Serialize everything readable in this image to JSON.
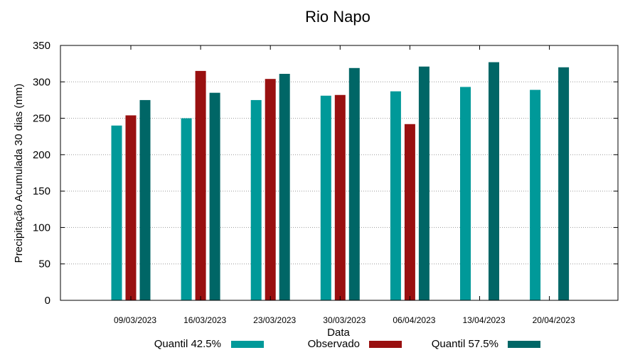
{
  "chart_data": {
    "type": "bar",
    "title": "Rio Napo",
    "xlabel": "Data",
    "ylabel": "Precipitação Acumulada 30 dias (mm)",
    "ylim": [
      0,
      350
    ],
    "yticks": [
      0,
      50,
      100,
      150,
      200,
      250,
      300,
      350
    ],
    "grid": "horizontal dotted",
    "legend_position": "bottom",
    "categories": [
      "09/03/2023",
      "16/03/2023",
      "23/03/2023",
      "30/03/2023",
      "06/04/2023",
      "13/04/2023",
      "20/04/2023"
    ],
    "series": [
      {
        "name": "Quantil 42.5%",
        "color": "#009999",
        "values": [
          240,
          250,
          275,
          281,
          287,
          293,
          289
        ]
      },
      {
        "name": "Observado",
        "color": "#991010",
        "values": [
          254,
          315,
          304,
          282,
          242,
          null,
          null
        ]
      },
      {
        "name": "Quantil 57.5%",
        "color": "#006666",
        "values": [
          275,
          285,
          311,
          319,
          321,
          327,
          320
        ]
      }
    ]
  }
}
